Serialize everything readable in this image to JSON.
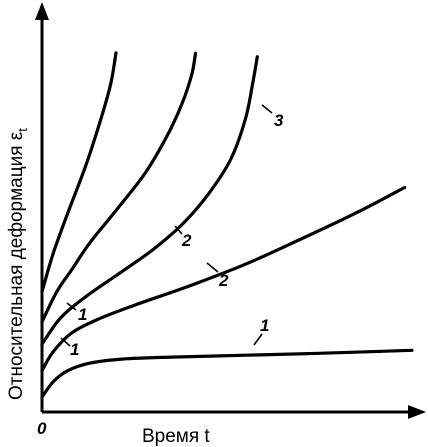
{
  "chart_data": {
    "type": "line",
    "xlabel": "Время t",
    "ylabel": "Относительная деформация ε",
    "ylabel_subscript": "t",
    "origin_label": "0",
    "grid": false,
    "legend": "none",
    "xlim": [
      0,
      100
    ],
    "ylim": [
      0,
      100
    ],
    "series": [
      {
        "label_marks": [
          "1"
        ],
        "x": [
          0,
          3,
          7,
          13,
          22,
          35,
          55,
          75,
          100
        ],
        "y": [
          4,
          8,
          11,
          13,
          14.1,
          14.6,
          15.1,
          15.6,
          16.4
        ]
      },
      {
        "label_marks": [
          "1",
          "2"
        ],
        "x": [
          0,
          3,
          8,
          15,
          25,
          40,
          55,
          70,
          85,
          98
        ],
        "y": [
          11,
          16,
          21,
          24.6,
          28.4,
          33.6,
          39.3,
          46,
          53,
          59.7
        ]
      },
      {
        "label_marks": [
          "1",
          "2",
          "3"
        ],
        "x": [
          0,
          5,
          12,
          22,
          30,
          38,
          45,
          51,
          55,
          57,
          58.2
        ],
        "y": [
          18,
          25,
          30.8,
          37.6,
          43.2,
          50,
          58,
          67.2,
          78,
          87.7,
          94.5
        ]
      },
      {
        "label_marks": [],
        "x": [
          0,
          4,
          8,
          13,
          20,
          28,
          34,
          38,
          40.5,
          41.5
        ],
        "y": [
          24,
          32,
          37.8,
          45.1,
          53.6,
          63.7,
          73.8,
          82.4,
          89.9,
          95.4
        ]
      },
      {
        "label_marks": [],
        "x": [
          0,
          3,
          7,
          12,
          16,
          18.6,
          20
        ],
        "y": [
          32,
          42.1,
          53,
          66,
          78.2,
          87.4,
          95.5
        ]
      }
    ]
  }
}
